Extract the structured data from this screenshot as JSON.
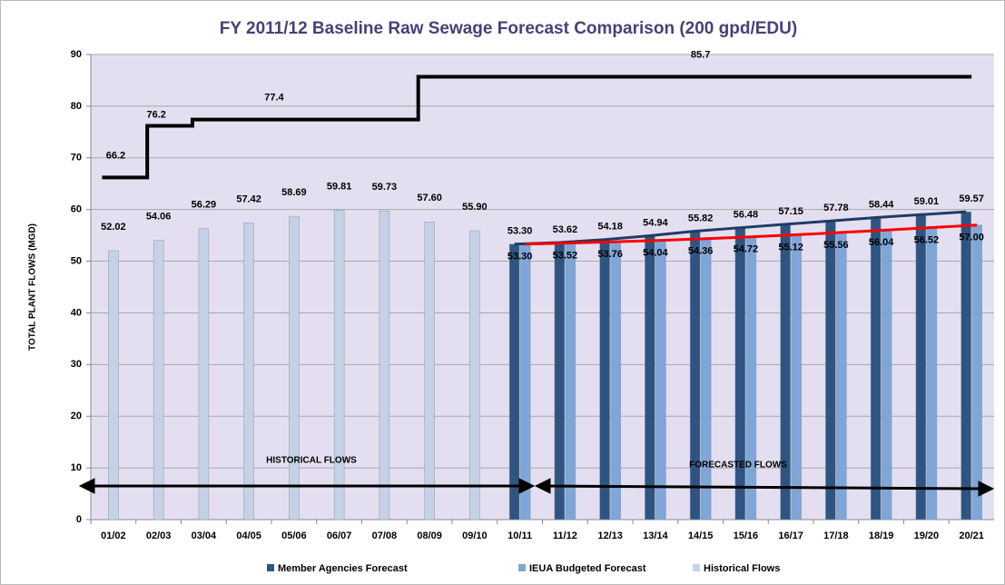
{
  "chart_data": {
    "type": "bar",
    "title": "FY 2011/12 Baseline Raw Sewage Forecast Comparison (200 gpd/EDU)",
    "y_label": "TOTAL PLANT FLOWS (MGD)",
    "categories": [
      "01/02",
      "02/03",
      "03/04",
      "04/05",
      "05/06",
      "06/07",
      "07/08",
      "08/09",
      "09/10",
      "10/11",
      "11/12",
      "12/13",
      "13/14",
      "14/15",
      "15/16",
      "16/17",
      "17/18",
      "18/19",
      "19/20",
      "20/21"
    ],
    "ylim": [
      0,
      90
    ],
    "yticks": [
      0,
      10,
      20,
      30,
      40,
      50,
      60,
      70,
      80,
      90
    ],
    "grid": true,
    "series": [
      {
        "name": "Member Agencies Forecast",
        "color": "#2e5582",
        "values": [
          null,
          null,
          null,
          null,
          null,
          null,
          null,
          null,
          null,
          53.3,
          53.62,
          54.18,
          54.94,
          55.82,
          56.48,
          57.15,
          57.78,
          58.44,
          59.01,
          59.57
        ],
        "value_labels": [
          null,
          null,
          null,
          null,
          null,
          null,
          null,
          null,
          null,
          "53.30",
          "53.62",
          "54.18",
          "54.94",
          "55.82",
          "56.48",
          "57.15",
          "57.78",
          "58.44",
          "59.01",
          "59.57"
        ]
      },
      {
        "name": "IEUA Budgeted Forecast",
        "color": "#7ea6d8",
        "values": [
          null,
          null,
          null,
          null,
          null,
          null,
          null,
          null,
          null,
          53.3,
          53.52,
          53.76,
          54.04,
          54.36,
          54.72,
          55.12,
          55.56,
          56.04,
          56.52,
          57.0
        ],
        "value_labels": [
          null,
          null,
          null,
          null,
          null,
          null,
          null,
          null,
          null,
          "53.30",
          "53.52",
          "53.76",
          "54.04",
          "54.36",
          "54.72",
          "55.12",
          "55.56",
          "56.04",
          "56.52",
          "57.00"
        ]
      },
      {
        "name": "Historical Flows",
        "color": "#c5d2e6",
        "values": [
          52.02,
          54.06,
          56.29,
          57.42,
          58.69,
          59.81,
          59.73,
          57.6,
          55.9,
          null,
          null,
          null,
          null,
          null,
          null,
          null,
          null,
          null,
          null,
          null
        ],
        "value_labels": [
          "52.02",
          "54.06",
          "56.29",
          "57.42",
          "58.69",
          "59.81",
          "59.73",
          "57.60",
          "55.90",
          null,
          null,
          null,
          null,
          null,
          null,
          null,
          null,
          null,
          null,
          null
        ]
      }
    ],
    "capacity": {
      "color": "#000000",
      "values": [
        66.2,
        76.2,
        77.4,
        77.4,
        77.4,
        77.4,
        77.4,
        85.7,
        85.7,
        85.7,
        85.7,
        85.7,
        85.7,
        85.7,
        85.7,
        85.7,
        85.7,
        85.7,
        85.7,
        85.7
      ]
    },
    "annotations": [
      "HISTORICAL FLOWS",
      "FORECASTED FLOWS"
    ]
  }
}
